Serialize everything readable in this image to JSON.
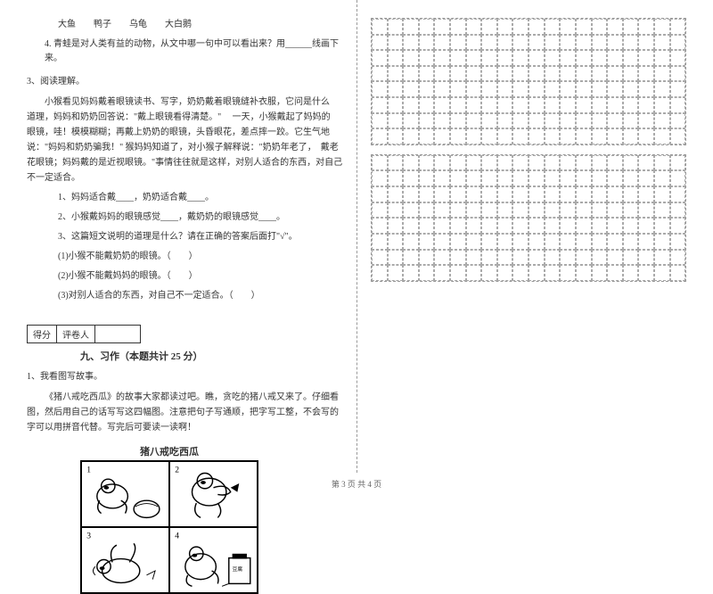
{
  "left": {
    "animals": "大鱼　　鸭子　　乌龟　　大白鹅",
    "q4": "4. 青蛙是对人类有益的动物，从文中哪一句中可以看出来？用______线画下来。",
    "q3_title": "3、阅读理解。",
    "passage": "小猴看见妈妈戴着眼镜读书、写字，奶奶戴着眼镜缝补衣服，它问是什么　道理，妈妈和奶奶回答说：\"戴上眼镜看得清楚。\" 　一天，小猴戴起了妈妈的　眼镜，哇！模模糊糊；再戴上奶奶的眼镜，头昏眼花，差点摔一跤。它生气地　说：\"妈妈和奶奶骗我！\" 猴妈妈知道了，对小猴子解释说：\"奶奶年老了，　戴老花眼镜；妈妈戴的是近视眼镜。\"事情往往就是这样，对别人适合的东西，对自己不一定适合。",
    "sub1": "1、妈妈适合戴____，奶奶适合戴____。",
    "sub2": "2、小猴戴妈妈的眼镜感觉____，戴奶奶的眼镜感觉____。",
    "sub3": "3、这篇短文说明的道理是什么？请在正确的答案后面打\"√\"。",
    "opt1": "(1)小猴不能戴奶奶的眼镜。（　　）",
    "opt2": "(2)小猴不能戴妈妈的眼镜。（　　）",
    "opt3": "(3)对别人适合的东西，对自己不一定适合。（　　）",
    "score_label1": "得分",
    "score_label2": "评卷人",
    "section9": "九、习作（本题共计 25 分）",
    "writing_q": "1、我看图写故事。",
    "writing_body": "《猪八戒吃西瓜》的故事大家都读过吧。瞧，贪吃的猪八戒又来了。仔细看图，然后用自己的话写写这四幅图。注意把句子写通顺，把字写工整，不会写的字可以用拼音代替。写完后可要读一读啊！",
    "comic_title": "猪八戒吃西瓜"
  },
  "footer": "第 3 页 共 4 页",
  "grid": {
    "rows_block1": 8,
    "rows_block2": 8,
    "cols": 20
  },
  "style": {
    "bg": "#ffffff",
    "text": "#333333",
    "dash": "#999999",
    "fontsize_body": 10
  }
}
